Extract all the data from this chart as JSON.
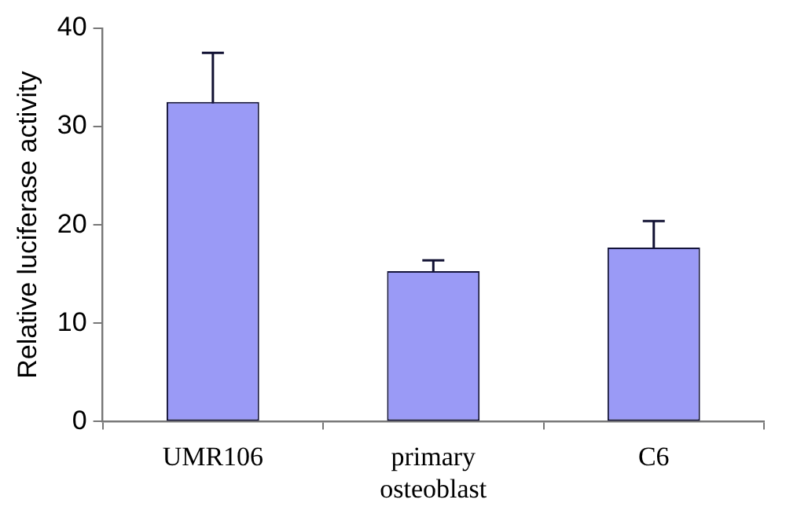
{
  "chart_data": {
    "type": "bar",
    "ylabel": "Relative luciferase activity",
    "categories": [
      "UMR106",
      "primary osteoblast",
      "C6"
    ],
    "values": [
      32.5,
      15.3,
      17.7
    ],
    "errors": [
      5.0,
      1.1,
      2.7
    ],
    "color": "#9a9af6",
    "ylim": [
      0,
      40
    ],
    "yticks": [
      0,
      10,
      20,
      30,
      40
    ],
    "grid": false,
    "legend": false
  }
}
